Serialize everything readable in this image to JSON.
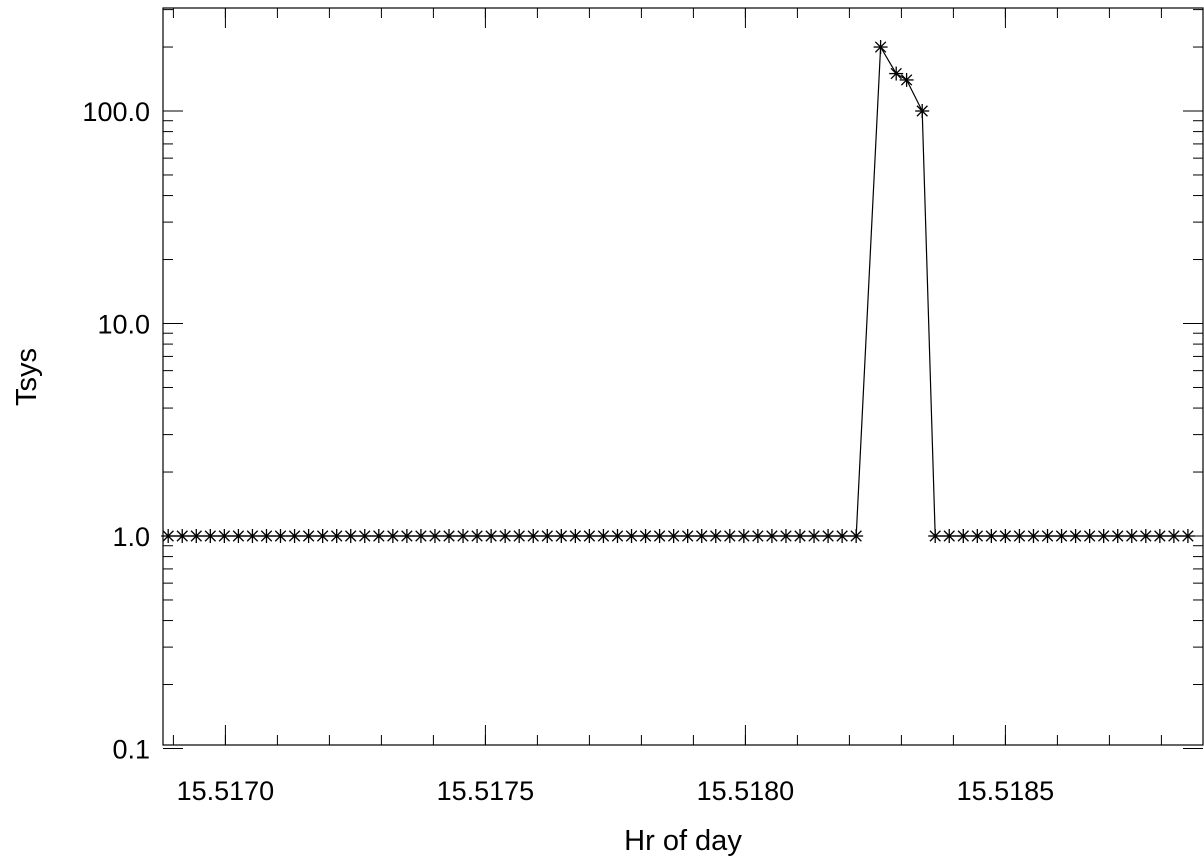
{
  "chart_data": {
    "type": "line",
    "title": "",
    "xlabel": "Hr of day",
    "ylabel": "Tsys",
    "y_scale": "log",
    "ylim": [
      0.1,
      300
    ],
    "xlim": [
      15.51688,
      15.51888
    ],
    "x_ticks": [
      15.517,
      15.5175,
      15.518,
      15.5185
    ],
    "x_tick_labels": [
      "15.5170",
      "15.5175",
      "15.5180",
      "15.5185"
    ],
    "y_ticks": [
      0.1,
      1.0,
      10.0,
      100.0
    ],
    "y_tick_labels": [
      "0.1",
      "1.0",
      "10.0",
      "100.0"
    ],
    "grid": false,
    "marker": "asterisk",
    "line_color": "#000000",
    "series": [
      {
        "x_start": 15.51689,
        "x_step": 2.7e-05,
        "values": [
          1,
          1,
          1,
          1,
          1,
          1,
          1,
          1,
          1,
          1,
          1,
          1,
          1,
          1,
          1,
          1,
          1,
          1,
          1,
          1,
          1,
          1,
          1,
          1,
          1,
          1,
          1,
          1,
          1,
          1,
          1,
          1,
          1,
          1,
          1,
          1,
          1,
          1,
          1,
          1,
          1,
          1,
          1,
          1,
          1,
          1,
          1,
          1,
          1,
          1,
          200,
          150,
          140,
          100,
          1,
          1,
          1,
          1,
          1,
          1,
          1,
          1,
          1,
          1,
          1,
          1,
          1,
          1,
          1,
          1,
          1,
          1,
          1
        ],
        "x_breaks": [
          {
            "index": 50,
            "x": 15.51826
          },
          {
            "index": 51,
            "x": 15.51829
          },
          {
            "index": 52,
            "x": 15.51831
          },
          {
            "index": 53,
            "x": 15.51834
          },
          {
            "index": 54,
            "x": 15.518365
          }
        ]
      }
    ]
  }
}
